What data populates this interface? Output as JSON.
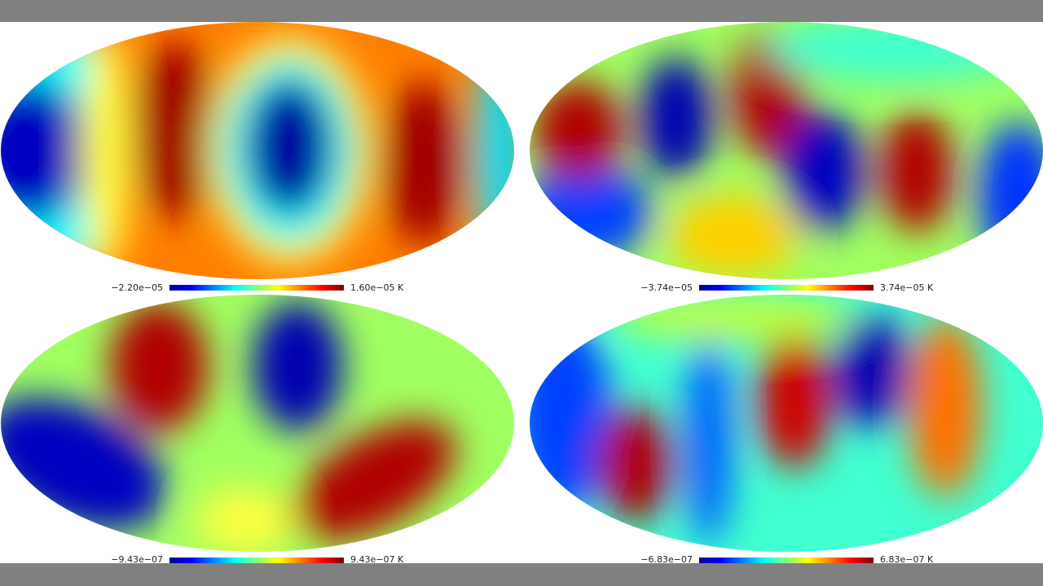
{
  "panels": [
    {
      "min_label": "−2.20e−05",
      "max_label": "1.60e−05 K"
    },
    {
      "min_label": "−3.74e−05",
      "max_label": "3.74e−05 K"
    },
    {
      "min_label": "−9.43e−07",
      "max_label": "9.43e−07 K"
    },
    {
      "min_label": "−6.83e−07",
      "max_label": "6.83e−07 K"
    }
  ]
}
